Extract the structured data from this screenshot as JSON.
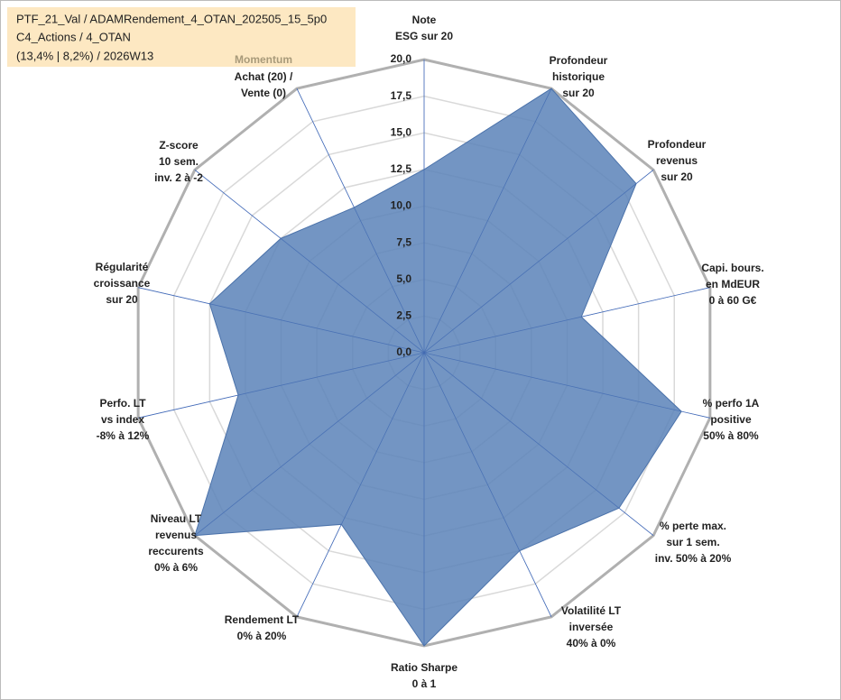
{
  "chart_data": {
    "type": "radar",
    "title": [
      "PTF_21_Val / ADAMRendement_4_OTAN_202505_15_5p0",
      "C4_Actions / 4_OTAN",
      "(13,4% | 8,2%) / 2026W13"
    ],
    "annotation": "Momentum",
    "categories": [
      [
        "Note",
        "ESG sur 20"
      ],
      [
        "Profondeur",
        "historique",
        "sur 20"
      ],
      [
        "Profondeur",
        "revenus",
        "sur 20"
      ],
      [
        "Capi. bours.",
        "en MdEUR",
        "0 à 60 G€"
      ],
      [
        "% perfo 1A",
        "positive",
        "50% à 80%"
      ],
      [
        "% perte max.",
        "sur 1 sem.",
        "inv. 50% à 20%"
      ],
      [
        "Volatilité LT",
        "inversée",
        "40% à 0%"
      ],
      [
        "Ratio Sharpe",
        "0 à 1"
      ],
      [
        "Rendement LT",
        "0% à 20%"
      ],
      [
        "Niveau LT",
        "revenus",
        "reccurents",
        "0% à 6%"
      ],
      [
        "Perfo. LT",
        "vs index",
        "-8% à 12%"
      ],
      [
        "Régularité",
        "croissance",
        "sur 20"
      ],
      [
        "Z-score",
        "10 sem.",
        "inv. 2 à -2"
      ],
      [
        "Achat (20) /",
        "Vente (0)"
      ]
    ],
    "series": [
      {
        "color": "#5b83b8",
        "values": [
          12.5,
          20,
          18.5,
          11,
          18,
          17,
          15,
          20,
          13,
          20,
          13,
          15,
          12.5,
          11
        ]
      }
    ],
    "ylim": [
      0,
      20
    ],
    "yticks": [
      {
        "value": 0,
        "label": "0,0"
      },
      {
        "value": 2.5,
        "label": "2,5"
      },
      {
        "value": 5,
        "label": "5,0"
      },
      {
        "value": 7.5,
        "label": "7,5"
      },
      {
        "value": 10,
        "label": "10,0"
      },
      {
        "value": 12.5,
        "label": "12,5"
      },
      {
        "value": 15,
        "label": "15,0"
      },
      {
        "value": 17.5,
        "label": "17,5"
      },
      {
        "value": 20,
        "label": "20,0"
      }
    ],
    "grid": true
  }
}
